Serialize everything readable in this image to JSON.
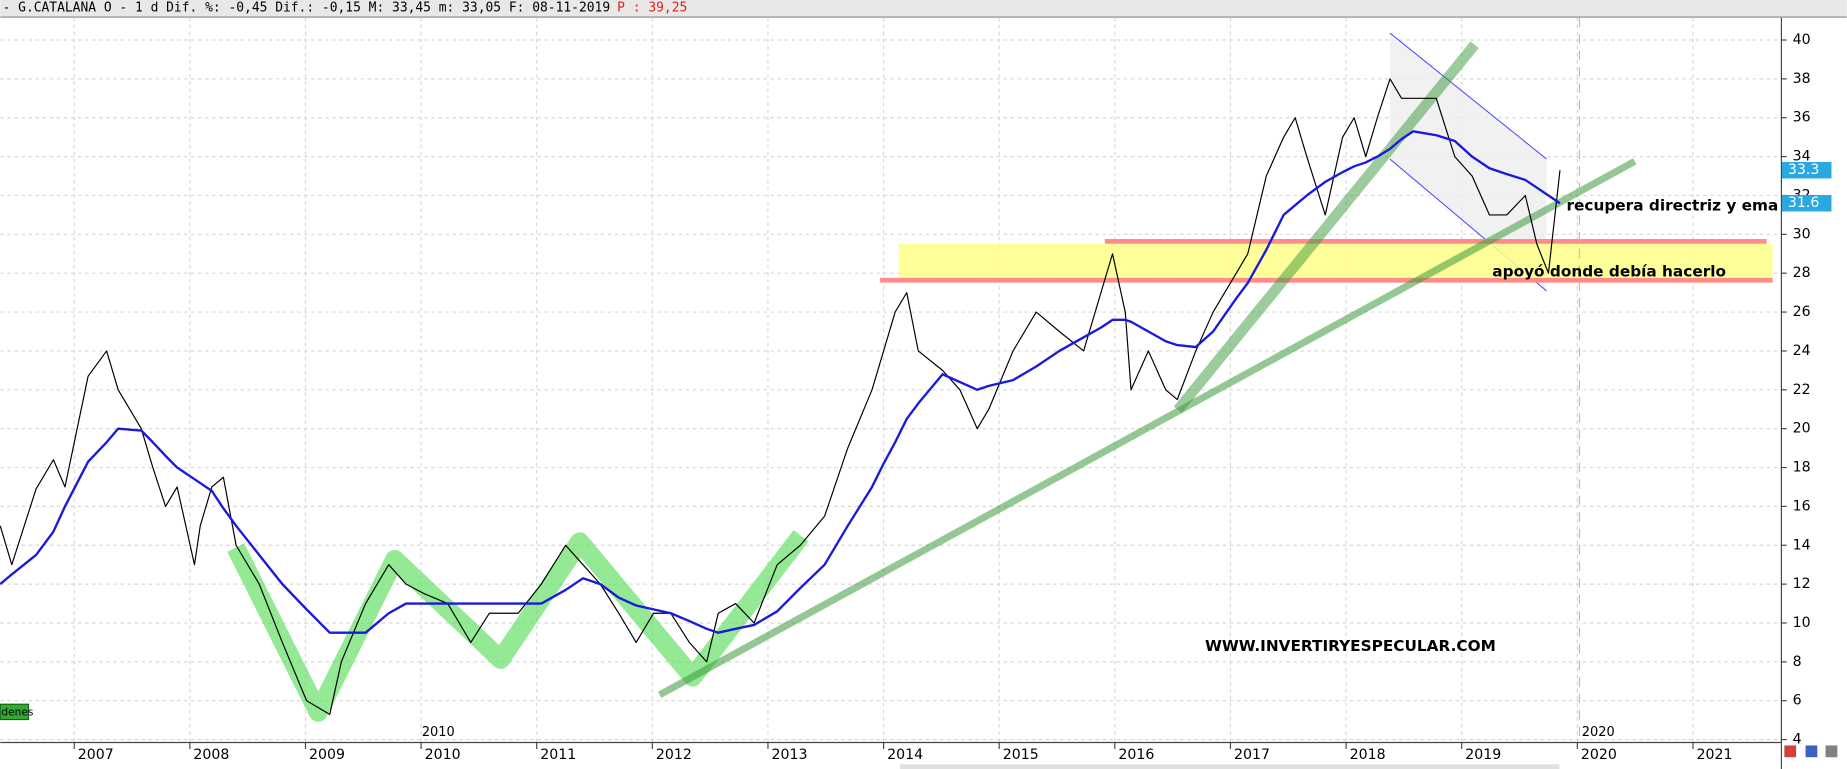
{
  "toolbar": {
    "header": "- G.CATALANA O -   1 d Dif. %: -0,45 Dif.: -0,15 M: 33,45 m: 33,05 F: 08-11-2019",
    "header_price": "P : 39,25",
    "tag": "denes",
    "period_labels": [
      "2010",
      "2020"
    ]
  },
  "chart_data": {
    "type": "line",
    "annotations": [
      "recupera directriz y ema",
      "apoyó donde debía hacerlo",
      "WWW.INVERTIRYESPECULAR.COM"
    ],
    "x": [
      2006.36,
      2006.46,
      2006.67,
      2006.82,
      2006.92,
      2007.12,
      2007.28,
      2007.38,
      2007.58,
      2007.68,
      2007.79,
      2007.89,
      2008.04,
      2008.09,
      2008.19,
      2008.29,
      2008.4,
      2008.6,
      2008.8,
      2009.01,
      2009.21,
      2009.31,
      2009.52,
      2009.72,
      2009.87,
      2010.03,
      2010.23,
      2010.43,
      2010.59,
      2010.84,
      2011.04,
      2011.25,
      2011.4,
      2011.55,
      2011.71,
      2011.86,
      2012.01,
      2012.16,
      2012.32,
      2012.47,
      2012.57,
      2012.72,
      2012.88,
      2013.08,
      2013.28,
      2013.49,
      2013.69,
      2013.9,
      2014.0,
      2014.1,
      2014.2,
      2014.3,
      2014.51,
      2014.66,
      2014.81,
      2014.91,
      2015.12,
      2015.32,
      2015.52,
      2015.73,
      2015.88,
      2015.98,
      2016.09,
      2016.14,
      2016.29,
      2016.44,
      2016.54,
      2016.7,
      2016.85,
      2017.05,
      2017.15,
      2017.31,
      2017.46,
      2017.56,
      2017.66,
      2017.82,
      2017.97,
      2018.07,
      2018.17,
      2018.27,
      2018.38,
      2018.48,
      2018.58,
      2018.78,
      2018.94,
      2019.09,
      2019.24,
      2019.39,
      2019.55,
      2019.65,
      2019.75,
      2019.85
    ],
    "series": [
      {
        "color": "#000000",
        "values": [
          15,
          13,
          16.9,
          18.4,
          17,
          22.7,
          24,
          22,
          20,
          18,
          16,
          17,
          13,
          15,
          17,
          17.5,
          14,
          12,
          9,
          6,
          5.3,
          8,
          11,
          13,
          12,
          11.5,
          11,
          9,
          10.5,
          10.5,
          12,
          14,
          13,
          12,
          10.5,
          9,
          10.5,
          10.5,
          9,
          8,
          10.5,
          11,
          10,
          13,
          14,
          15.5,
          19,
          22,
          24,
          26,
          27,
          24,
          23,
          22,
          20,
          21,
          24,
          26,
          25,
          24,
          27,
          29,
          26,
          22,
          24,
          22,
          21.5,
          24,
          26,
          28,
          29,
          33,
          35,
          36,
          34,
          31,
          35,
          36,
          34,
          36,
          38,
          37,
          37,
          37,
          34,
          33,
          31,
          31,
          32,
          29.5,
          28,
          33.3
        ],
        "label_color": "#29a9e0"
      },
      {
        "color": "#1a1adc",
        "values": [
          12,
          12.5,
          13.5,
          14.7,
          16,
          18.3,
          19.3,
          20,
          19.9,
          19.3,
          18.6,
          18,
          17.4,
          17.2,
          16.8,
          15.9,
          15,
          13.5,
          12,
          10.7,
          9.5,
          9.5,
          9.5,
          10.5,
          11,
          11,
          11,
          11,
          11,
          11,
          11,
          11.7,
          12.3,
          12,
          11.3,
          10.9,
          10.7,
          10.5,
          10.1,
          9.7,
          9.5,
          9.7,
          9.9,
          10.6,
          11.8,
          13,
          15,
          17,
          18.2,
          19.3,
          20.5,
          21.3,
          22.8,
          22.4,
          22,
          22.2,
          22.5,
          23.2,
          24,
          24.7,
          25.2,
          25.6,
          25.6,
          25.5,
          25,
          24.5,
          24.3,
          24.2,
          25,
          26.7,
          27.5,
          29.2,
          31,
          31.5,
          32,
          32.7,
          33.2,
          33.5,
          33.7,
          34,
          34.4,
          34.9,
          35.3,
          35.1,
          34.8,
          34,
          33.4,
          33.1,
          32.8,
          32.4,
          32,
          31.6
        ],
        "label_color": "#29a9e0"
      }
    ],
    "xlim": [
      2006.36,
      2021.76
    ],
    "xticks": [
      2007,
      2008,
      2009,
      2010,
      2011,
      2012,
      2013,
      2014,
      2015,
      2016,
      2017,
      2018,
      2019,
      2020,
      2021
    ],
    "ylim": [
      3.88,
      41.15
    ],
    "yticks": [
      4,
      6,
      8,
      10,
      12,
      14,
      16,
      18,
      20,
      22,
      24,
      26,
      28,
      30,
      32,
      34,
      36,
      38,
      40
    ],
    "grid": true
  }
}
